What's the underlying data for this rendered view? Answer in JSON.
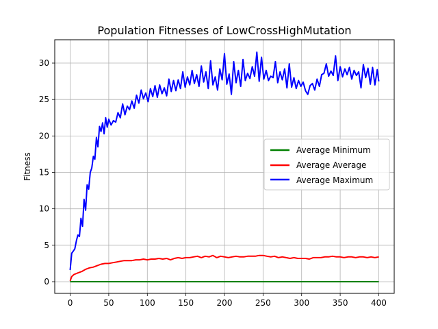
{
  "chart_data": {
    "type": "line",
    "title": "Population Fitnesses of LowCrossHighMutation",
    "xlabel": "",
    "ylabel": "Fitness",
    "xlim": [
      -20,
      420
    ],
    "ylim": [
      -1.6,
      33.2
    ],
    "xticks": [
      0,
      50,
      100,
      150,
      200,
      250,
      300,
      350,
      400
    ],
    "yticks": [
      0,
      5,
      10,
      15,
      20,
      25,
      30
    ],
    "grid": true,
    "legend_position": "center-right",
    "series": [
      {
        "name": "Average Minimum",
        "color": "#008000",
        "x": [
          0,
          400
        ],
        "values": [
          0,
          0
        ]
      },
      {
        "name": "Average Average",
        "color": "#ff0000",
        "x": [
          0,
          2,
          5,
          10,
          15,
          20,
          25,
          30,
          35,
          40,
          45,
          50,
          55,
          60,
          65,
          70,
          75,
          80,
          85,
          90,
          95,
          100,
          105,
          110,
          115,
          120,
          125,
          130,
          135,
          140,
          145,
          150,
          155,
          160,
          165,
          170,
          175,
          180,
          185,
          190,
          195,
          200,
          205,
          210,
          215,
          220,
          225,
          230,
          235,
          240,
          245,
          250,
          255,
          260,
          265,
          270,
          275,
          280,
          285,
          290,
          295,
          300,
          305,
          310,
          315,
          320,
          325,
          330,
          335,
          340,
          345,
          350,
          355,
          360,
          365,
          370,
          375,
          380,
          385,
          390,
          395,
          400
        ],
        "values": [
          0.1,
          0.7,
          1.0,
          1.2,
          1.4,
          1.7,
          1.9,
          2.0,
          2.2,
          2.4,
          2.5,
          2.5,
          2.6,
          2.7,
          2.8,
          2.9,
          2.9,
          2.9,
          3.0,
          3.0,
          3.1,
          3.0,
          3.1,
          3.1,
          3.2,
          3.1,
          3.2,
          3.0,
          3.2,
          3.3,
          3.2,
          3.3,
          3.3,
          3.4,
          3.5,
          3.3,
          3.5,
          3.4,
          3.6,
          3.3,
          3.5,
          3.4,
          3.3,
          3.4,
          3.5,
          3.4,
          3.4,
          3.5,
          3.5,
          3.5,
          3.6,
          3.6,
          3.5,
          3.4,
          3.5,
          3.3,
          3.4,
          3.3,
          3.2,
          3.3,
          3.2,
          3.2,
          3.2,
          3.1,
          3.3,
          3.3,
          3.3,
          3.4,
          3.4,
          3.5,
          3.4,
          3.4,
          3.3,
          3.4,
          3.4,
          3.3,
          3.4,
          3.4,
          3.3,
          3.4,
          3.3,
          3.4
        ]
      },
      {
        "name": "Average Maximum",
        "color": "#0000ff",
        "x": [
          0,
          2,
          4,
          6,
          8,
          10,
          12,
          14,
          16,
          18,
          20,
          22,
          24,
          26,
          28,
          30,
          32,
          34,
          36,
          38,
          40,
          42,
          44,
          46,
          48,
          50,
          53,
          56,
          59,
          62,
          65,
          68,
          71,
          74,
          77,
          80,
          83,
          86,
          89,
          92,
          95,
          98,
          101,
          104,
          107,
          110,
          113,
          116,
          119,
          122,
          125,
          128,
          131,
          134,
          137,
          140,
          143,
          146,
          149,
          152,
          155,
          158,
          161,
          164,
          167,
          170,
          173,
          176,
          179,
          182,
          185,
          188,
          191,
          194,
          197,
          200,
          203,
          206,
          209,
          212,
          215,
          218,
          221,
          224,
          227,
          230,
          233,
          236,
          239,
          242,
          245,
          248,
          251,
          254,
          257,
          260,
          263,
          266,
          269,
          272,
          275,
          278,
          281,
          284,
          287,
          290,
          293,
          296,
          299,
          302,
          305,
          308,
          311,
          314,
          317,
          320,
          323,
          326,
          329,
          332,
          335,
          338,
          341,
          344,
          347,
          350,
          353,
          356,
          359,
          362,
          365,
          368,
          371,
          374,
          377,
          380,
          383,
          386,
          389,
          392,
          395,
          398,
          400
        ],
        "values": [
          1.6,
          3.9,
          4.2,
          4.5,
          5.6,
          6.4,
          6.2,
          8.7,
          7.6,
          11.3,
          9.8,
          13.3,
          12.7,
          15.0,
          15.6,
          17.2,
          16.8,
          19.8,
          18.5,
          21.3,
          20.6,
          21.8,
          20.3,
          22.5,
          21.2,
          22.3,
          21.5,
          22.1,
          21.9,
          23.2,
          22.5,
          24.4,
          22.9,
          24.1,
          23.6,
          24.8,
          23.8,
          25.6,
          24.5,
          26.3,
          25.1,
          25.9,
          24.7,
          26.5,
          25.4,
          26.9,
          25.3,
          27.0,
          25.8,
          26.6,
          25.5,
          27.8,
          26.1,
          27.6,
          26.2,
          27.7,
          26.5,
          28.8,
          26.7,
          28.1,
          27.0,
          29.0,
          27.2,
          28.4,
          26.8,
          29.6,
          27.4,
          28.8,
          26.5,
          30.3,
          27.0,
          28.1,
          26.3,
          29.2,
          27.7,
          31.3,
          27.1,
          28.5,
          25.7,
          30.2,
          27.3,
          29.0,
          26.8,
          30.5,
          27.6,
          28.6,
          27.9,
          29.5,
          28.2,
          31.5,
          27.5,
          30.8,
          27.8,
          29.0,
          27.6,
          28.2,
          28.0,
          30.2,
          27.3,
          28.8,
          27.7,
          29.2,
          26.6,
          29.9,
          26.7,
          28.0,
          26.5,
          27.6,
          26.8,
          27.4,
          26.2,
          25.7,
          26.9,
          27.2,
          26.3,
          27.8,
          26.8,
          28.4,
          28.6,
          29.9,
          28.2,
          28.9,
          28.3,
          31.0,
          27.6,
          29.5,
          28.1,
          29.2,
          28.4,
          29.4,
          27.8,
          29.0,
          28.3,
          28.8,
          26.6,
          29.8,
          28.0,
          29.3,
          27.1,
          29.4,
          27.0,
          29.1,
          27.5
        ]
      }
    ]
  }
}
